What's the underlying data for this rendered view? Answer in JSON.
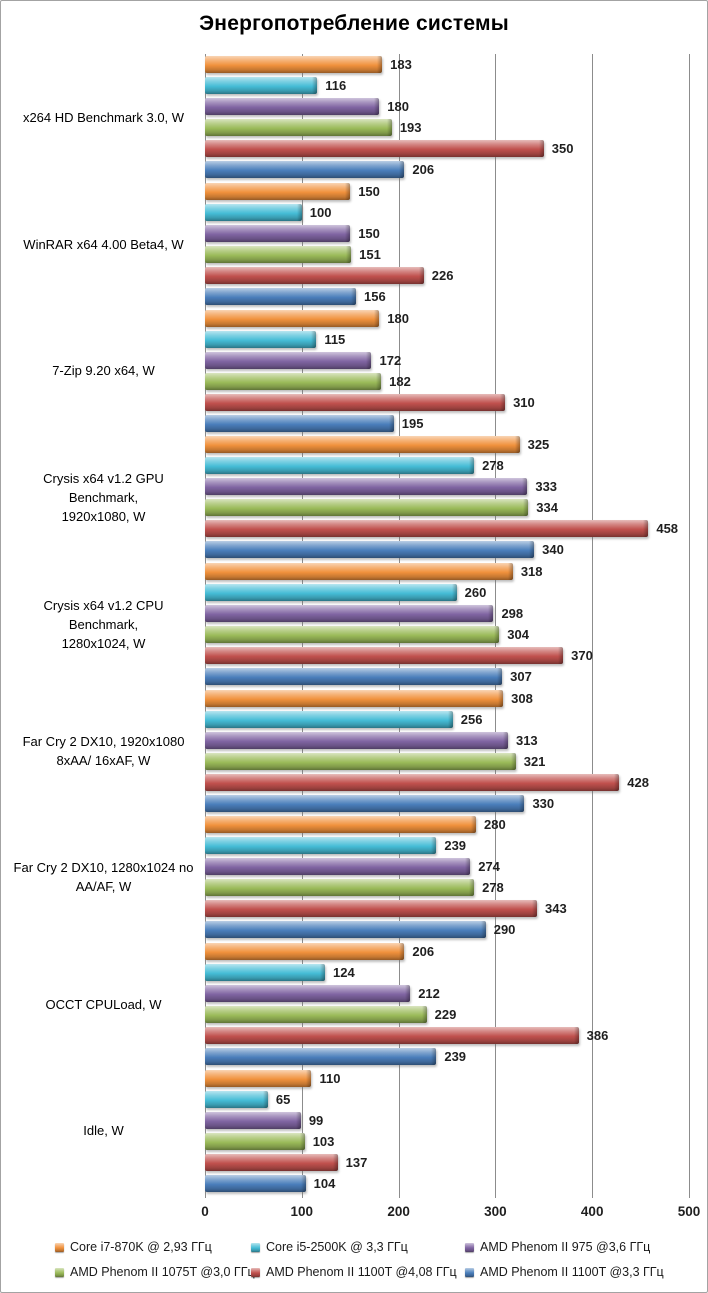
{
  "title": "Энергопотребление системы",
  "chart_data": {
    "type": "bar",
    "orientation": "horizontal",
    "title": "Энергопотребление системы",
    "unit": "W",
    "xlim": [
      0,
      500
    ],
    "xticks": [
      0,
      100,
      200,
      300,
      400,
      500
    ],
    "grid": "vertical",
    "legend_position": "bottom",
    "categories": [
      [
        "x264 HD Benchmark 3.0, W"
      ],
      [
        "WinRAR x64 4.00 Beta4, W"
      ],
      [
        "7-Zip 9.20 x64, W"
      ],
      [
        "Crysis x64 v1.2 GPU Benchmark,",
        "1920x1080, W"
      ],
      [
        "Crysis x64 v1.2 CPU Benchmark,",
        "1280x1024, W"
      ],
      [
        "Far Cry 2 DX10, 1920x1080",
        "8xAA/ 16xAF, W"
      ],
      [
        "Far Cry 2 DX10, 1280x1024 no",
        "AA/AF, W"
      ],
      [
        "OCCT CPULoad, W"
      ],
      [
        "Idle, W"
      ]
    ],
    "series": [
      {
        "name": "Core i7-870K @ 2,93 ГГц",
        "color": "#F0913C",
        "values": [
          183,
          150,
          180,
          325,
          318,
          308,
          280,
          206,
          110
        ]
      },
      {
        "name": "Core i5-2500K @ 3,3 ГГц",
        "color": "#45BCD6",
        "values": [
          116,
          100,
          115,
          278,
          260,
          256,
          239,
          124,
          65
        ]
      },
      {
        "name": "AMD Phenom II 975 @3,6 ГГц",
        "color": "#8064A2",
        "values": [
          180,
          150,
          172,
          333,
          298,
          313,
          274,
          212,
          99
        ]
      },
      {
        "name": "AMD Phenom II 1075T @3,0 ГГц",
        "color": "#9BBB59",
        "values": [
          193,
          151,
          182,
          334,
          304,
          321,
          278,
          229,
          103
        ]
      },
      {
        "name": "AMD Phenom II 1100T @4,08 ГГц",
        "color": "#C0504D",
        "values": [
          350,
          226,
          310,
          458,
          370,
          428,
          343,
          386,
          137
        ]
      },
      {
        "name": "AMD Phenom II 1100T @3,3 ГГц",
        "color": "#4A7EBB",
        "values": [
          206,
          156,
          195,
          340,
          307,
          330,
          290,
          239,
          104
        ]
      }
    ],
    "gridline_color": "#8C8C8C",
    "value_label_color": "#1F1F1F"
  }
}
